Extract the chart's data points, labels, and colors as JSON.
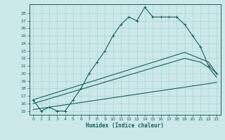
{
  "xlabel": "Humidex (Indice chaleur)",
  "bg_color": "#cce8e8",
  "grid_color": "#aad4d4",
  "line_color": "#1a6060",
  "xlim": [
    -0.5,
    23.5
  ],
  "ylim": [
    14.5,
    29.2
  ],
  "xticks": [
    0,
    1,
    2,
    3,
    4,
    5,
    6,
    7,
    8,
    9,
    10,
    11,
    12,
    13,
    14,
    15,
    16,
    17,
    18,
    19,
    20,
    21,
    22,
    23
  ],
  "yticks": [
    15,
    16,
    17,
    18,
    19,
    20,
    21,
    22,
    23,
    24,
    25,
    26,
    27,
    28
  ],
  "curve1_x": [
    0,
    1,
    2,
    3,
    4,
    5,
    6,
    7,
    8,
    9,
    10,
    11,
    12,
    13,
    14,
    15,
    16,
    17,
    18,
    19,
    20,
    21,
    22,
    23
  ],
  "curve1_y": [
    16.5,
    15.0,
    15.5,
    15.0,
    15.0,
    16.5,
    18.0,
    20.0,
    21.5,
    23.0,
    25.0,
    26.5,
    27.5,
    27.0,
    28.8,
    27.5,
    27.5,
    27.5,
    27.5,
    26.5,
    25.0,
    23.5,
    21.0,
    20.0
  ],
  "curve2_x": [
    0,
    23
  ],
  "curve2_y": [
    15.2,
    18.8
  ],
  "curve3_x": [
    0,
    19,
    21,
    22,
    23
  ],
  "curve3_y": [
    16.0,
    22.0,
    21.5,
    20.8,
    19.5
  ],
  "curve4_x": [
    0,
    19,
    22,
    23
  ],
  "curve4_y": [
    16.5,
    22.8,
    21.5,
    20.0
  ]
}
